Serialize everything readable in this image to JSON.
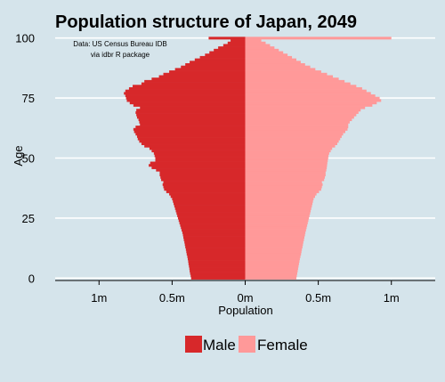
{
  "colors": {
    "background": "#d5e4eb",
    "male": "#d7282a",
    "female": "#ff9999",
    "grid": "#ffffff",
    "axis": "#000000"
  },
  "chart_data": {
    "type": "bar",
    "orientation": "horizontal",
    "title": "Population structure of Japan, 2049",
    "annotation": [
      "Data: US Census Bureau IDB",
      "via idbr R package"
    ],
    "xlabel": "Population",
    "ylabel": "Age",
    "xlim": [
      -1300000,
      1300000
    ],
    "ylim": [
      -1,
      101
    ],
    "x_ticks": [
      {
        "value": -1000000,
        "label": "1m"
      },
      {
        "value": -500000,
        "label": "0.5m"
      },
      {
        "value": 0,
        "label": "0m"
      },
      {
        "value": 500000,
        "label": "0.5m"
      },
      {
        "value": 1000000,
        "label": "1m"
      }
    ],
    "y_ticks": [
      {
        "value": 0,
        "label": "0"
      },
      {
        "value": 25,
        "label": "25"
      },
      {
        "value": 50,
        "label": "50"
      },
      {
        "value": 75,
        "label": "75"
      },
      {
        "value": 100,
        "label": "100"
      }
    ],
    "grid": {
      "horizontal": true,
      "vertical": false
    },
    "legend": {
      "position": "bottom",
      "entries": [
        "Male",
        "Female"
      ]
    },
    "ages": [
      0,
      1,
      2,
      3,
      4,
      5,
      6,
      7,
      8,
      9,
      10,
      11,
      12,
      13,
      14,
      15,
      16,
      17,
      18,
      19,
      20,
      21,
      22,
      23,
      24,
      25,
      26,
      27,
      28,
      29,
      30,
      31,
      32,
      33,
      34,
      35,
      36,
      37,
      38,
      39,
      40,
      41,
      42,
      43,
      44,
      45,
      46,
      47,
      48,
      49,
      50,
      51,
      52,
      53,
      54,
      55,
      56,
      57,
      58,
      59,
      60,
      61,
      62,
      63,
      64,
      65,
      66,
      67,
      68,
      69,
      70,
      71,
      72,
      73,
      74,
      75,
      76,
      77,
      78,
      79,
      80,
      81,
      82,
      83,
      84,
      85,
      86,
      87,
      88,
      89,
      90,
      91,
      92,
      93,
      94,
      95,
      96,
      97,
      98,
      99,
      100
    ],
    "series": [
      {
        "name": "Male",
        "values": [
          -370000,
          -373000,
          -377000,
          -380000,
          -382000,
          -385000,
          -388000,
          -390000,
          -393000,
          -396000,
          -400000,
          -403000,
          -406000,
          -410000,
          -413000,
          -416000,
          -420000,
          -423000,
          -426000,
          -430000,
          -435000,
          -440000,
          -445000,
          -450000,
          -455000,
          -460000,
          -465000,
          -470000,
          -475000,
          -480000,
          -485000,
          -490000,
          -495000,
          -500000,
          -510000,
          -520000,
          -540000,
          -555000,
          -560000,
          -565000,
          -560000,
          -575000,
          -580000,
          -585000,
          -585000,
          -610000,
          -640000,
          -660000,
          -650000,
          -615000,
          -615000,
          -620000,
          -625000,
          -640000,
          -655000,
          -690000,
          -710000,
          -725000,
          -735000,
          -740000,
          -750000,
          -760000,
          -765000,
          -750000,
          -720000,
          -725000,
          -730000,
          -740000,
          -745000,
          -750000,
          -745000,
          -720000,
          -765000,
          -790000,
          -810000,
          -815000,
          -820000,
          -830000,
          -820000,
          -795000,
          -770000,
          -710000,
          -690000,
          -640000,
          -590000,
          -560000,
          -520000,
          -480000,
          -440000,
          -410000,
          -380000,
          -345000,
          -310000,
          -275000,
          -245000,
          -215000,
          -185000,
          -150000,
          -120000,
          -100000,
          -250000
        ]
      },
      {
        "name": "Female",
        "values": [
          350000,
          353000,
          356000,
          359000,
          362000,
          365000,
          368000,
          371000,
          374000,
          378000,
          382000,
          385000,
          388000,
          392000,
          395000,
          398000,
          402000,
          405000,
          409000,
          412000,
          416000,
          420000,
          424000,
          428000,
          432000,
          436000,
          440000,
          444000,
          448000,
          452000,
          456000,
          460000,
          464000,
          468000,
          478000,
          488000,
          505000,
          520000,
          525000,
          530000,
          525000,
          540000,
          545000,
          550000,
          550000,
          555000,
          558000,
          560000,
          562000,
          565000,
          568000,
          570000,
          575000,
          585000,
          595000,
          615000,
          630000,
          640000,
          650000,
          660000,
          670000,
          685000,
          700000,
          705000,
          705000,
          715000,
          730000,
          745000,
          760000,
          775000,
          790000,
          820000,
          870000,
          900000,
          930000,
          920000,
          890000,
          860000,
          830000,
          800000,
          760000,
          720000,
          680000,
          640000,
          600000,
          560000,
          520000,
          480000,
          445000,
          410000,
          380000,
          350000,
          320000,
          290000,
          260000,
          230000,
          200000,
          170000,
          140000,
          110000,
          1000000
        ]
      }
    ]
  }
}
